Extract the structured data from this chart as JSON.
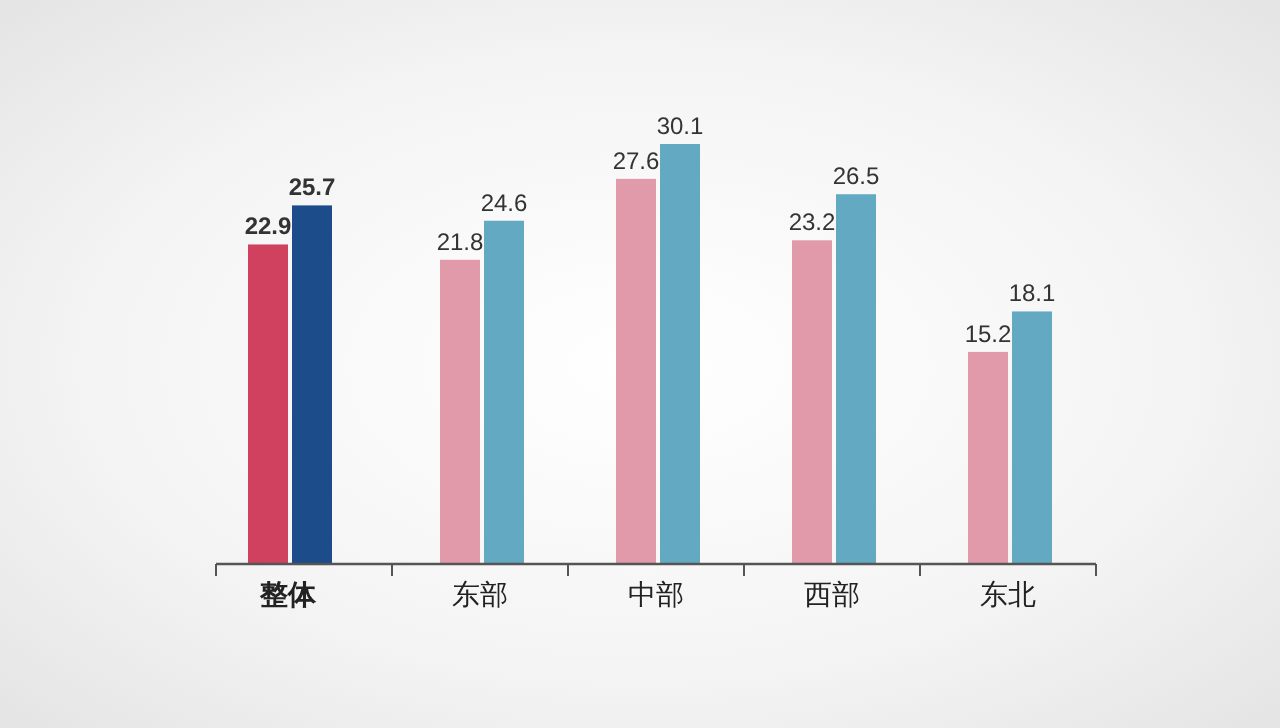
{
  "chart_data": {
    "type": "bar",
    "categories": [
      "整体",
      "东部",
      "中部",
      "西部",
      "东北"
    ],
    "series": [
      {
        "colors": [
          "#d0405f",
          "#e09aaa",
          "#e09aaa",
          "#e09aaa",
          "#e09aaa"
        ],
        "values": [
          22.9,
          21.8,
          27.6,
          23.2,
          15.2
        ]
      },
      {
        "colors": [
          "#1d4c8a",
          "#63a9c2",
          "#63a9c2",
          "#63a9c2",
          "#63a9c2"
        ],
        "values": [
          25.7,
          24.6,
          30.1,
          26.5,
          18.1
        ]
      }
    ],
    "data_labels": true
  }
}
